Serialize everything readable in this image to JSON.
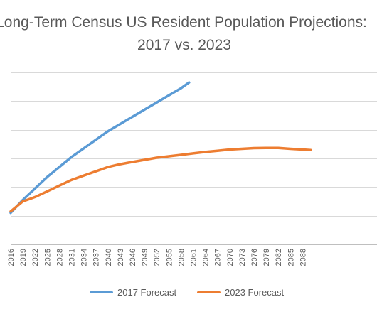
{
  "chart_data": {
    "type": "line",
    "title_lines": [
      "Long-Term Census US Resident Population Projections:",
      "2017 vs. 2023"
    ],
    "x_categories": [
      "2016",
      "2019",
      "2022",
      "2025",
      "2028",
      "2031",
      "2034",
      "2037",
      "2040",
      "2043",
      "2046",
      "2049",
      "2052",
      "2055",
      "2058",
      "2061",
      "2064",
      "2067",
      "2070",
      "2073",
      "2076",
      "2079",
      "2082",
      "2085",
      "2088"
    ],
    "xlabel": "",
    "ylabel": "",
    "y_tick_labels_visible": false,
    "grid": true,
    "legend_position": "bottom",
    "series": [
      {
        "name": "2017 Forecast",
        "color": "#5b9bd5",
        "points": [
          {
            "x": 2016,
            "y": 322
          },
          {
            "x": 2019,
            "y": 331
          },
          {
            "x": 2022,
            "y": 339
          },
          {
            "x": 2025,
            "y": 347
          },
          {
            "x": 2028,
            "y": 354
          },
          {
            "x": 2031,
            "y": 361
          },
          {
            "x": 2034,
            "y": 367
          },
          {
            "x": 2037,
            "y": 373
          },
          {
            "x": 2040,
            "y": 379
          },
          {
            "x": 2043,
            "y": 384
          },
          {
            "x": 2046,
            "y": 389
          },
          {
            "x": 2049,
            "y": 394
          },
          {
            "x": 2052,
            "y": 399
          },
          {
            "x": 2055,
            "y": 404
          },
          {
            "x": 2058,
            "y": 409
          },
          {
            "x": 2060,
            "y": 413
          }
        ]
      },
      {
        "name": "2023 Forecast",
        "color": "#ed7d31",
        "points": [
          {
            "x": 2016,
            "y": 323
          },
          {
            "x": 2019,
            "y": 330
          },
          {
            "x": 2021,
            "y": 332
          },
          {
            "x": 2022,
            "y": 333
          },
          {
            "x": 2025,
            "y": 337
          },
          {
            "x": 2028,
            "y": 341
          },
          {
            "x": 2031,
            "y": 345
          },
          {
            "x": 2034,
            "y": 348
          },
          {
            "x": 2037,
            "y": 351
          },
          {
            "x": 2040,
            "y": 354
          },
          {
            "x": 2043,
            "y": 356
          },
          {
            "x": 2046,
            "y": 357.5
          },
          {
            "x": 2049,
            "y": 359
          },
          {
            "x": 2052,
            "y": 360.5
          },
          {
            "x": 2055,
            "y": 361.5
          },
          {
            "x": 2058,
            "y": 362.5
          },
          {
            "x": 2061,
            "y": 363.5
          },
          {
            "x": 2064,
            "y": 364.5
          },
          {
            "x": 2067,
            "y": 365.3
          },
          {
            "x": 2070,
            "y": 366.2
          },
          {
            "x": 2073,
            "y": 366.7
          },
          {
            "x": 2076,
            "y": 367.2
          },
          {
            "x": 2079,
            "y": 367.3
          },
          {
            "x": 2082,
            "y": 367.3
          },
          {
            "x": 2085,
            "y": 366.7
          },
          {
            "x": 2088,
            "y": 366.2
          },
          {
            "x": 2090,
            "y": 365.8
          }
        ]
      }
    ]
  }
}
